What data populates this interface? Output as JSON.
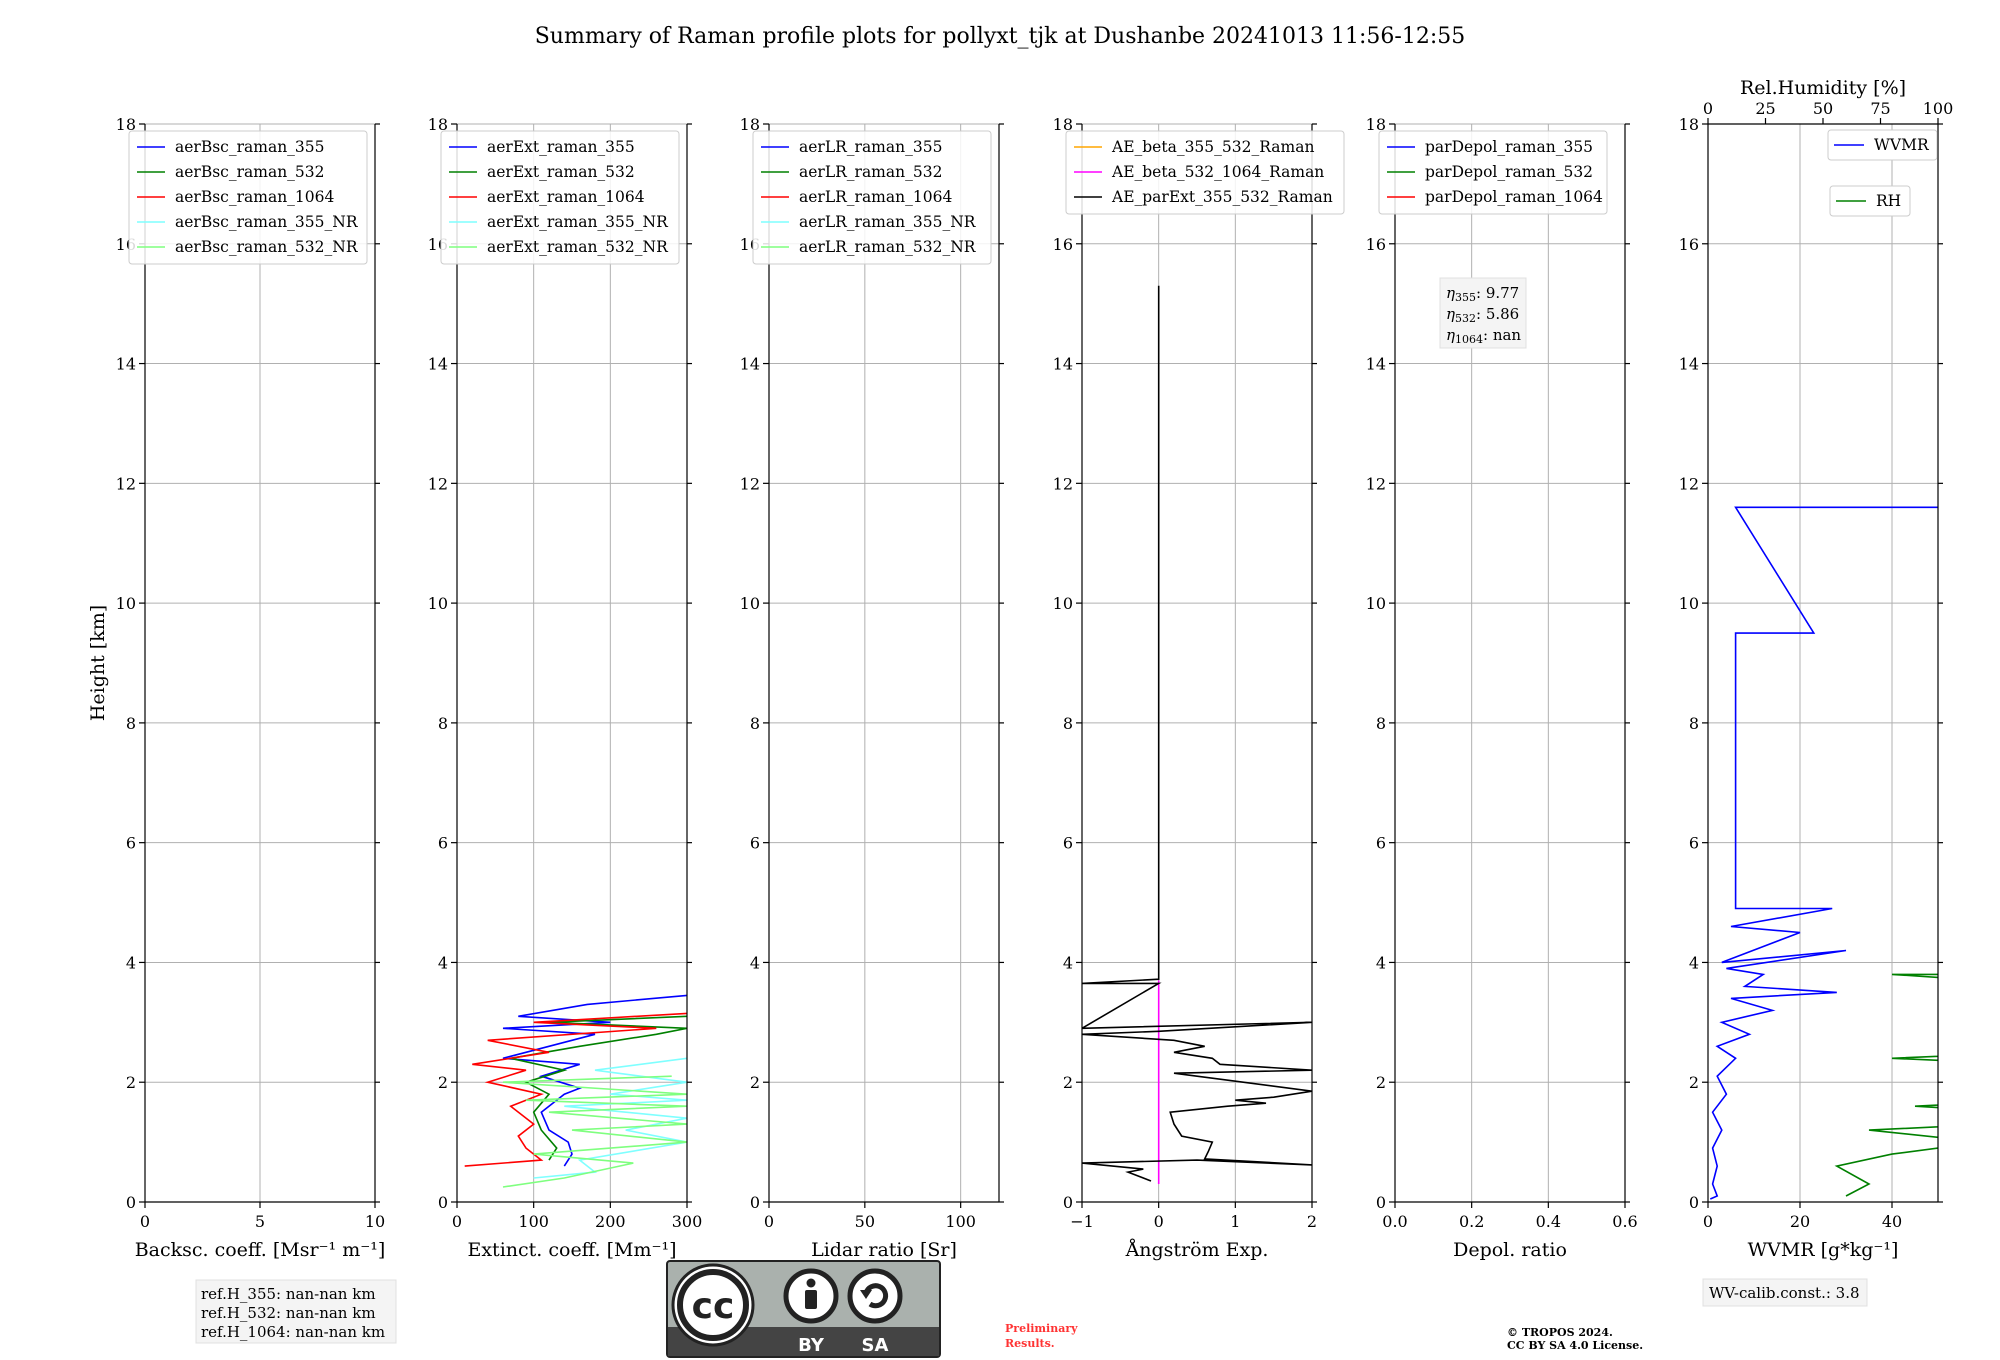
{
  "title": "Summary of Raman profile plots for pollyxt_tjk at Dushanbe 20241013 11:56-12:55",
  "shared_ylabel": "Height [km]",
  "ref_heights": [
    "ref.H_355: nan-nan km",
    "ref.H_532: nan-nan km",
    "ref.H_1064: nan-nan km"
  ],
  "angstrom_info": [
    "η355: 9.77",
    "η532: 5.86",
    "η1064: nan"
  ],
  "wv_calib": "WV-calib.const.: 3.8",
  "preliminary": [
    "Preliminary",
    "Results."
  ],
  "copyright": [
    "© TROPOS 2024.",
    "CC BY SA 4.0 License."
  ],
  "license_badge": {
    "icons": [
      "cc-icon",
      "by-person-icon",
      "sa-cycle-icon"
    ],
    "by": "BY",
    "sa": "SA"
  },
  "colors": {
    "blue": "#0000ff",
    "green": "#008000",
    "red": "#ff0000",
    "cyan": "#7fffff",
    "lightgreen": "#7fff7f",
    "orange": "#ffa500",
    "magenta": "#ff00ff",
    "black": "#000000",
    "grid": "#b0b0b0",
    "badge_grey": "#aab1ad",
    "badge_dark": "#444444",
    "prelim_red": "#ff3333"
  },
  "chart_data": [
    {
      "type": "line",
      "xlabel": "Backsc. coeff. [Msr⁻¹ m⁻¹]",
      "ylabel": "Height [km]",
      "xlim": [
        0,
        10
      ],
      "ylim": [
        0,
        18
      ],
      "xticks": [
        "0",
        "5",
        "10"
      ],
      "yticks": [
        "0",
        "2",
        "4",
        "6",
        "8",
        "10",
        "12",
        "14",
        "16",
        "18"
      ],
      "grid": true,
      "legend": "top-left",
      "series": [
        {
          "name": "aerBsc_raman_355",
          "color": "blue",
          "profile": []
        },
        {
          "name": "aerBsc_raman_532",
          "color": "green",
          "profile": []
        },
        {
          "name": "aerBsc_raman_1064",
          "color": "red",
          "profile": []
        },
        {
          "name": "aerBsc_raman_355_NR",
          "color": "cyan",
          "profile": []
        },
        {
          "name": "aerBsc_raman_532_NR",
          "color": "lightgreen",
          "profile": []
        }
      ]
    },
    {
      "type": "line",
      "xlabel": "Extinct. coeff. [Mm⁻¹]",
      "xlim": [
        0,
        300
      ],
      "ylim": [
        0,
        18
      ],
      "xticks": [
        "0",
        "100",
        "200",
        "300"
      ],
      "yticks": [
        "0",
        "2",
        "4",
        "6",
        "8",
        "10",
        "12",
        "14",
        "16",
        "18"
      ],
      "grid": true,
      "legend": "top-left",
      "series": [
        {
          "name": "aerExt_raman_355",
          "color": "blue",
          "profile": [
            [
              140,
              0.6
            ],
            [
              150,
              0.8
            ],
            [
              145,
              1.0
            ],
            [
              120,
              1.2
            ],
            [
              110,
              1.5
            ],
            [
              140,
              1.8
            ],
            [
              160,
              1.9
            ],
            [
              110,
              2.1
            ],
            [
              160,
              2.3
            ],
            [
              60,
              2.4
            ],
            [
              120,
              2.6
            ],
            [
              180,
              2.8
            ],
            [
              60,
              2.9
            ],
            [
              200,
              3.0
            ],
            [
              80,
              3.1
            ],
            [
              170,
              3.3
            ],
            [
              300,
              3.45
            ]
          ]
        },
        {
          "name": "aerExt_raman_532",
          "color": "green",
          "profile": [
            [
              120,
              0.7
            ],
            [
              130,
              0.9
            ],
            [
              110,
              1.2
            ],
            [
              100,
              1.5
            ],
            [
              120,
              1.8
            ],
            [
              90,
              2.0
            ],
            [
              140,
              2.2
            ],
            [
              70,
              2.4
            ],
            [
              160,
              2.6
            ],
            [
              260,
              2.8
            ],
            [
              300,
              2.9
            ],
            [
              120,
              3.0
            ],
            [
              300,
              3.1
            ]
          ]
        },
        {
          "name": "aerExt_raman_1064",
          "color": "red",
          "profile": [
            [
              10,
              0.6
            ],
            [
              110,
              0.7
            ],
            [
              90,
              0.9
            ],
            [
              80,
              1.1
            ],
            [
              100,
              1.3
            ],
            [
              70,
              1.6
            ],
            [
              110,
              1.8
            ],
            [
              40,
              2.0
            ],
            [
              90,
              2.2
            ],
            [
              20,
              2.3
            ],
            [
              120,
              2.5
            ],
            [
              40,
              2.7
            ],
            [
              260,
              2.9
            ],
            [
              100,
              3.0
            ],
            [
              300,
              3.15
            ]
          ]
        },
        {
          "name": "aerExt_raman_355_NR",
          "color": "cyan",
          "profile": [
            [
              100,
              0.4
            ],
            [
              180,
              0.5
            ],
            [
              160,
              0.7
            ],
            [
              300,
              1.0
            ],
            [
              220,
              1.2
            ],
            [
              300,
              1.4
            ],
            [
              140,
              1.6
            ],
            [
              300,
              1.7
            ],
            [
              200,
              1.8
            ],
            [
              300,
              2.0
            ],
            [
              180,
              2.2
            ],
            [
              300,
              2.4
            ]
          ]
        },
        {
          "name": "aerExt_raman_532_NR",
          "color": "lightgreen",
          "profile": [
            [
              60,
              0.25
            ],
            [
              140,
              0.4
            ],
            [
              230,
              0.65
            ],
            [
              100,
              0.8
            ],
            [
              300,
              1.0
            ],
            [
              150,
              1.2
            ],
            [
              300,
              1.3
            ],
            [
              120,
              1.5
            ],
            [
              300,
              1.6
            ],
            [
              90,
              1.7
            ],
            [
              300,
              1.8
            ],
            [
              60,
              2.0
            ],
            [
              280,
              2.1
            ]
          ]
        }
      ]
    },
    {
      "type": "line",
      "xlabel": "Lidar ratio [Sr]",
      "xlim": [
        0,
        120
      ],
      "ylim": [
        0,
        18
      ],
      "xticks": [
        "0",
        "50",
        "100"
      ],
      "yticks": [
        "0",
        "2",
        "4",
        "6",
        "8",
        "10",
        "12",
        "14",
        "16",
        "18"
      ],
      "grid": true,
      "legend": "top-left",
      "series": [
        {
          "name": "aerLR_raman_355",
          "color": "blue",
          "profile": []
        },
        {
          "name": "aerLR_raman_532",
          "color": "green",
          "profile": []
        },
        {
          "name": "aerLR_raman_1064",
          "color": "red",
          "profile": []
        },
        {
          "name": "aerLR_raman_355_NR",
          "color": "cyan",
          "profile": []
        },
        {
          "name": "aerLR_raman_532_NR",
          "color": "lightgreen",
          "profile": []
        }
      ]
    },
    {
      "type": "line",
      "xlabel": "Ångström Exp.",
      "xlim": [
        -1,
        2
      ],
      "ylim": [
        0,
        18
      ],
      "xticks": [
        "−1",
        "0",
        "1",
        "2"
      ],
      "yticks": [
        "0",
        "2",
        "4",
        "6",
        "8",
        "10",
        "12",
        "14",
        "16",
        "18"
      ],
      "grid": true,
      "legend": "top-left",
      "series": [
        {
          "name": "AE_beta_355_532_Raman",
          "color": "orange",
          "profile": []
        },
        {
          "name": "AE_beta_532_1064_Raman",
          "color": "magenta",
          "profile": [
            [
              0,
              0.3
            ],
            [
              0,
              3.7
            ]
          ]
        },
        {
          "name": "AE_parExt_355_532_Raman",
          "color": "black",
          "profile": [
            [
              -0.1,
              0.35
            ],
            [
              -0.4,
              0.5
            ],
            [
              -0.2,
              0.55
            ],
            [
              -1,
              0.65
            ],
            [
              0.5,
              0.7
            ],
            [
              2,
              0.62
            ],
            [
              0.6,
              0.72
            ],
            [
              0.65,
              0.85
            ],
            [
              0.7,
              1.0
            ],
            [
              0.3,
              1.1
            ],
            [
              0.2,
              1.3
            ],
            [
              0.15,
              1.5
            ],
            [
              0.9,
              1.6
            ],
            [
              1.4,
              1.65
            ],
            [
              1.0,
              1.7
            ],
            [
              1.5,
              1.75
            ],
            [
              2,
              1.85
            ],
            [
              0.2,
              2.15
            ],
            [
              2,
              2.2
            ],
            [
              0.8,
              2.3
            ],
            [
              0.7,
              2.4
            ],
            [
              0.2,
              2.5
            ],
            [
              0.6,
              2.6
            ],
            [
              0.2,
              2.7
            ],
            [
              -1,
              2.8
            ],
            [
              0.0,
              2.85
            ],
            [
              2,
              3.0
            ],
            [
              -1,
              2.9
            ],
            [
              0,
              3.65
            ],
            [
              -1,
              3.65
            ],
            [
              0,
              3.72
            ],
            [
              0,
              15.3
            ]
          ]
        }
      ]
    },
    {
      "type": "line",
      "xlabel": "Depol. ratio",
      "xlim": [
        0,
        0.6
      ],
      "ylim": [
        0,
        18
      ],
      "xticks": [
        "0.0",
        "0.2",
        "0.4",
        "0.6"
      ],
      "yticks": [
        "0",
        "2",
        "4",
        "6",
        "8",
        "10",
        "12",
        "14",
        "16",
        "18"
      ],
      "grid": true,
      "legend": "top-left",
      "series": [
        {
          "name": "parDepol_raman_355",
          "color": "blue",
          "profile": []
        },
        {
          "name": "parDepol_raman_532",
          "color": "green",
          "profile": []
        },
        {
          "name": "parDepol_raman_1064",
          "color": "red",
          "profile": []
        }
      ]
    },
    {
      "type": "line",
      "xlabel": "WVMR [g*kg⁻¹]",
      "x2label": "Rel.Humidity [%]",
      "xlim": [
        0,
        50
      ],
      "x2lim": [
        0,
        100
      ],
      "ylim": [
        0,
        18
      ],
      "xticks": [
        "0",
        "20",
        "40"
      ],
      "x2ticks": [
        "0",
        "25",
        "50",
        "75",
        "100"
      ],
      "yticks": [
        "0",
        "2",
        "4",
        "6",
        "8",
        "10",
        "12",
        "14",
        "16",
        "18"
      ],
      "grid": true,
      "legend": "top-right",
      "series": [
        {
          "name": "WVMR",
          "color": "blue",
          "profile": [
            [
              0.5,
              0.05
            ],
            [
              2,
              0.1
            ],
            [
              1,
              0.3
            ],
            [
              2,
              0.6
            ],
            [
              1,
              0.9
            ],
            [
              3,
              1.2
            ],
            [
              1,
              1.5
            ],
            [
              4,
              1.8
            ],
            [
              2,
              2.1
            ],
            [
              6,
              2.4
            ],
            [
              2,
              2.6
            ],
            [
              9,
              2.8
            ],
            [
              3,
              3.0
            ],
            [
              14,
              3.2
            ],
            [
              5,
              3.4
            ],
            [
              28,
              3.5
            ],
            [
              8,
              3.6
            ],
            [
              12,
              3.8
            ],
            [
              4,
              3.9
            ],
            [
              30,
              4.2
            ],
            [
              3,
              4.0
            ],
            [
              20,
              4.5
            ],
            [
              5,
              4.6
            ],
            [
              27,
              4.9
            ],
            [
              6,
              4.9
            ],
            [
              6,
              7.35
            ],
            [
              6,
              9.5
            ],
            [
              23,
              9.5
            ],
            [
              6,
              11.6
            ],
            [
              50,
              11.6
            ]
          ]
        },
        {
          "name": "RH",
          "color": "green",
          "profile": [
            [
              30,
              0.1
            ],
            [
              35,
              0.3
            ],
            [
              28,
              0.6
            ],
            [
              40,
              0.8
            ],
            [
              60,
              1.0
            ],
            [
              35,
              1.2
            ],
            [
              90,
              1.4
            ],
            [
              45,
              1.6
            ],
            [
              100,
              1.8
            ],
            [
              55,
              2.0
            ],
            [
              100,
              2.2
            ],
            [
              40,
              2.4
            ],
            [
              100,
              2.6
            ],
            [
              60,
              2.8
            ],
            [
              100,
              3.0
            ],
            [
              70,
              3.2
            ],
            [
              100,
              3.5
            ],
            [
              40,
              3.8
            ],
            [
              100,
              3.8
            ],
            [
              85,
              4.5
            ],
            [
              100,
              4.5
            ]
          ]
        }
      ]
    }
  ]
}
